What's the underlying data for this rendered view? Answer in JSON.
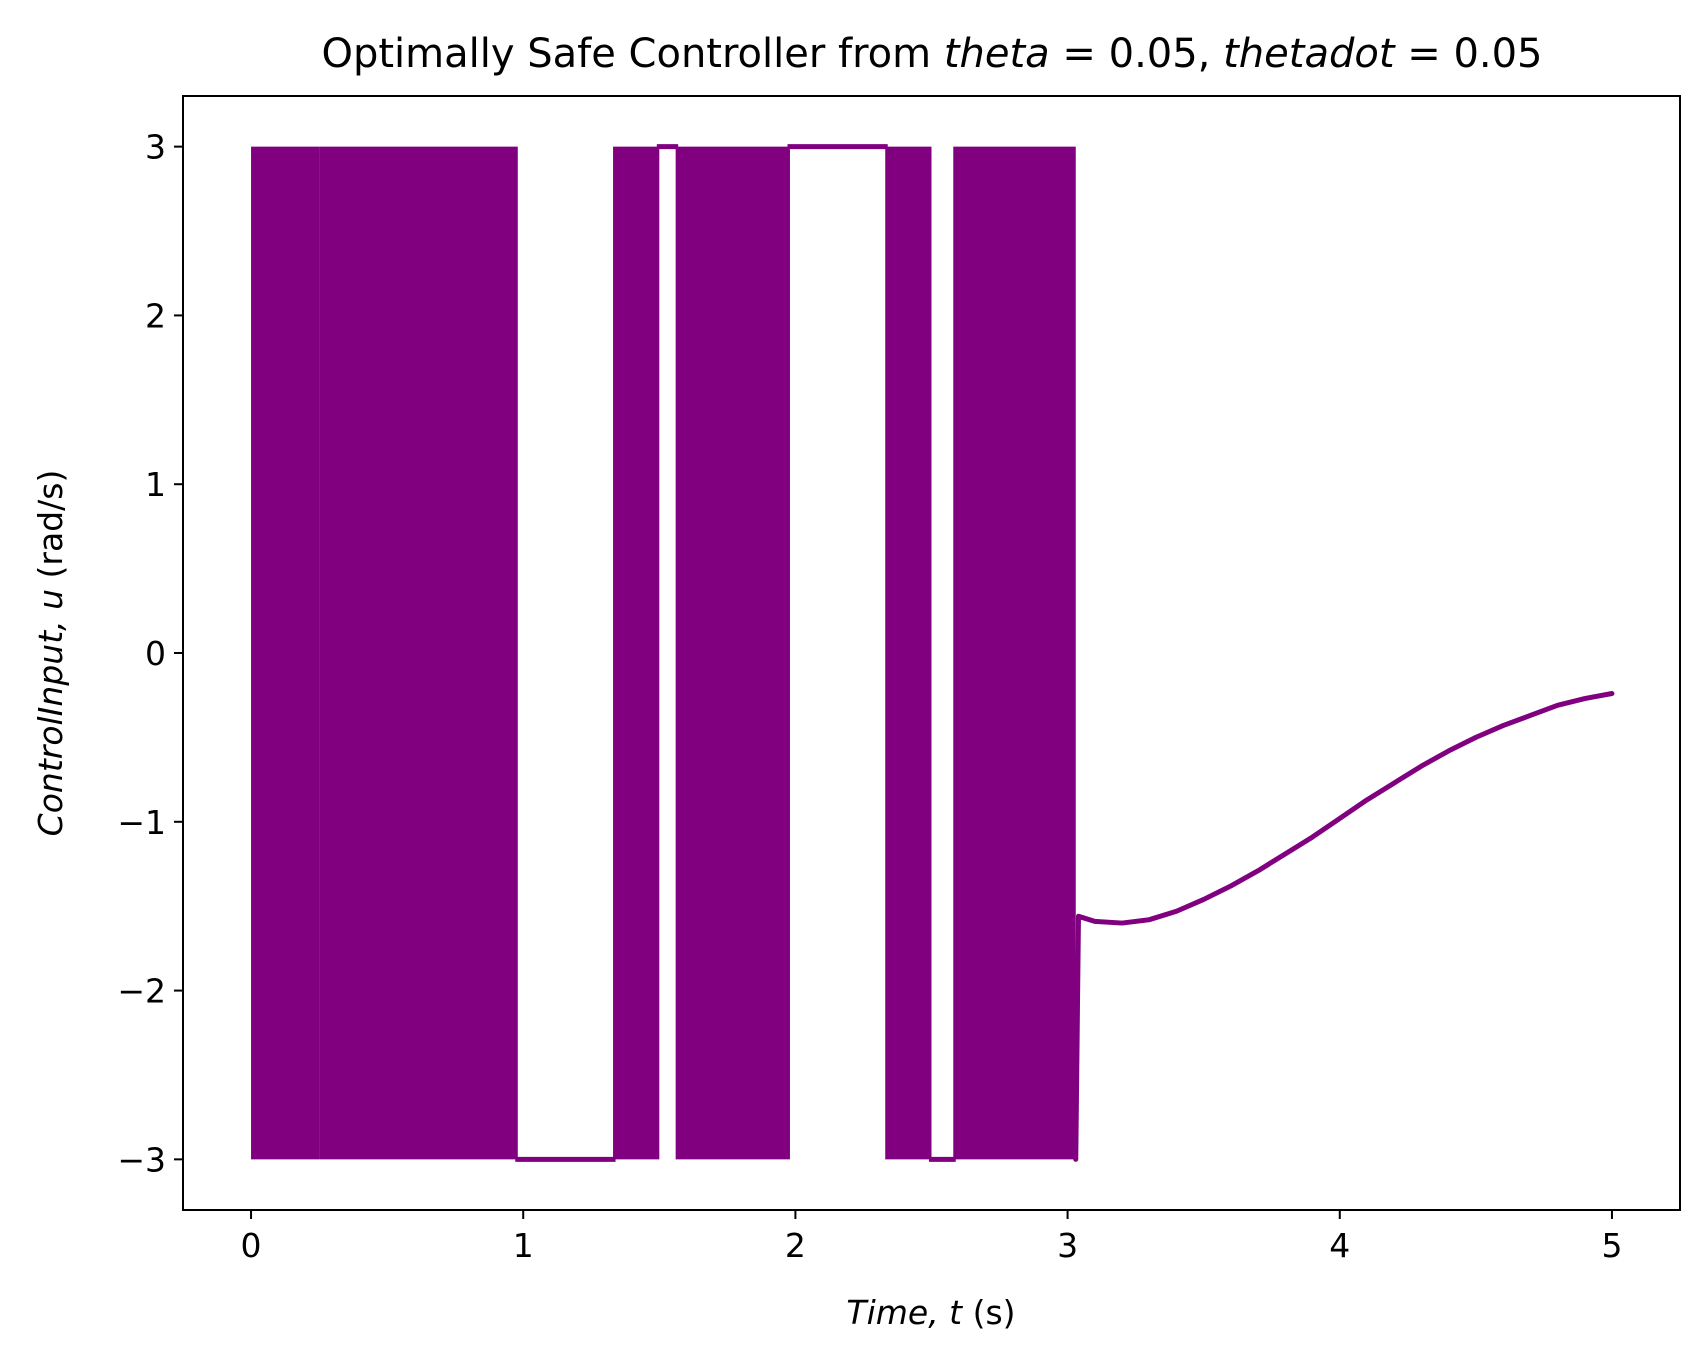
{
  "chart_data": {
    "type": "line",
    "title": {
      "plain": "Optimally Safe Controller from ",
      "var1": "theta",
      "eq1": " = 0.05, ",
      "var2": "thetadot",
      "eq2": " = 0.05"
    },
    "xlabel": {
      "var": "Time, t",
      "unit": " (s)"
    },
    "ylabel": {
      "var": "ControlInput, u",
      "unit": " (rad/s)"
    },
    "xlim": [
      -0.25,
      5.25
    ],
    "ylim": [
      -3.3,
      3.3
    ],
    "xticks": [
      0,
      1,
      2,
      3,
      4,
      5
    ],
    "xtick_labels": [
      "0",
      "1",
      "2",
      "3",
      "4",
      "5"
    ],
    "yticks": [
      -3,
      -2,
      -1,
      0,
      1,
      2,
      3
    ],
    "ytick_labels": [
      "−3",
      "−2",
      "−1",
      "0",
      "1",
      "2",
      "3"
    ],
    "grid": false,
    "series": [
      {
        "color": "#800080",
        "bang_bang": {
          "levels": [
            -3,
            3
          ],
          "dense_intervals": [
            [
              0.0,
              0.25
            ],
            [
              0.25,
              0.98
            ],
            [
              1.33,
              1.5
            ],
            [
              1.56,
              1.98
            ],
            [
              2.33,
              2.5
            ],
            [
              2.58,
              3.03
            ]
          ],
          "low_holds": [
            [
              0.98,
              1.33
            ],
            [
              2.5,
              2.58
            ]
          ],
          "high_holds": [
            [
              1.5,
              1.56
            ],
            [
              1.98,
              2.33
            ]
          ]
        },
        "smooth_segment": {
          "x": [
            3.04,
            3.1,
            3.2,
            3.3,
            3.4,
            3.5,
            3.6,
            3.7,
            3.8,
            3.9,
            4.0,
            4.1,
            4.2,
            4.3,
            4.4,
            4.5,
            4.6,
            4.7,
            4.8,
            4.9,
            5.0
          ],
          "y": [
            -1.56,
            -1.59,
            -1.6,
            -1.58,
            -1.53,
            -1.46,
            -1.38,
            -1.29,
            -1.19,
            -1.09,
            -0.98,
            -0.87,
            -0.77,
            -0.67,
            -0.58,
            -0.5,
            -0.43,
            -0.37,
            -0.31,
            -0.27,
            -0.24
          ]
        }
      }
    ]
  }
}
